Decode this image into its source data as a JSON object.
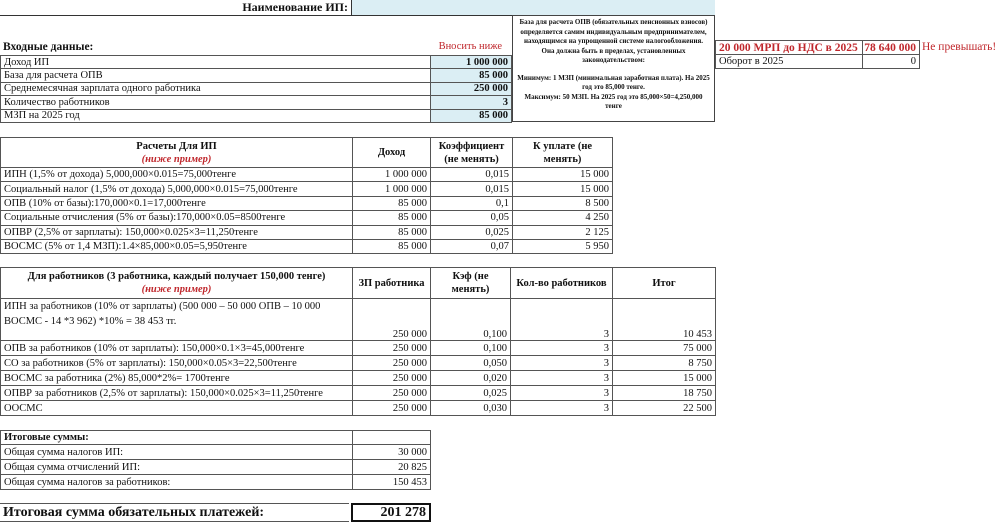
{
  "header": {
    "name_label": "Наименование ИП:",
    "name_value": ""
  },
  "inputs": {
    "title": "Входные данные:",
    "hint": "Вносить ниже",
    "rows": [
      {
        "label": "Доход ИП",
        "value": "1 000 000"
      },
      {
        "label": "База для расчета ОПВ",
        "value": "85 000"
      },
      {
        "label": "Среднемесячная зарплата одного работника",
        "value": "250 000"
      },
      {
        "label": "Количество работников",
        "value": "3"
      },
      {
        "label": "МЗП на 2025 год",
        "value": "85 000"
      }
    ]
  },
  "info": {
    "p1": "База для расчета ОПВ (обязательных пенсионных взносов) определяется самим индивидуальным предпринимателем, находящимся на упрощенной системе налогообложения. Она должна быть в пределах, установленных законодательством:",
    "p2": "Минимум: 1 МЗП (минимальная заработная плата). На 2025 год это 85,000 тенге.",
    "p3": "Максимум: 50 МЗП. На 2025 год это 85,000×50=4,250,000 тенге"
  },
  "limit": {
    "label": "20 000 МРП до НДС в 2025",
    "value": "78 640 000",
    "warning": "Не превышать!",
    "turnover_label": "Оборот в 2025",
    "turnover_value": "0"
  },
  "ip_calc": {
    "title": "Расчеты Для ИП",
    "subtitle": "(ниже пример)",
    "col_income": "Доход",
    "col_coef": "Коэффициент (не менять)",
    "col_pay": "К уплате (не менять)",
    "rows": [
      {
        "label": "ИПН (1,5% от дохода) 5,000,000×0.015=75,000тенге",
        "income": "1 000 000",
        "coef": "0,015",
        "pay": "15 000"
      },
      {
        "label": "Социальный налог (1,5% от дохода) 5,000,000×0.015=75,000тенге",
        "income": "1 000 000",
        "coef": "0,015",
        "pay": "15 000"
      },
      {
        "label": "ОПВ (10% от базы):170,000×0.1=17,000тенге",
        "income": "85 000",
        "coef": "0,1",
        "pay": "8 500"
      },
      {
        "label": "Социальные отчисления (5% от базы):170,000×0.05=8500тенге",
        "income": "85 000",
        "coef": "0,05",
        "pay": "4 250"
      },
      {
        "label": "ОПВР  (2,5% от зарплаты): 150,000×0.025×3=11,250тенге",
        "income": "85 000",
        "coef": "0,025",
        "pay": "2 125"
      },
      {
        "label": "ВОСМС (5% от 1,4 МЗП):1.4×85,000×0.05=5,950тенге",
        "income": "85 000",
        "coef": "0,07",
        "pay": "5 950"
      }
    ]
  },
  "emp_calc": {
    "title": "Для работников (3 работника, каждый получает 150,000 тенге)",
    "subtitle": "(ниже пример)",
    "col_salary": "ЗП работника",
    "col_coef": "Кэф (не менять)",
    "col_count": "Кол-во работников",
    "col_total": "Итог",
    "rows": [
      {
        "label": "ИПН за работников (10% от зарплаты) (500 000 – 50 000 ОПВ – 10 000 ВОСМС - 14 *3 962) *10% = 38 453 тг.",
        "salary": "250 000",
        "coef": "0,100",
        "count": "3",
        "total": "10 453"
      },
      {
        "label": "ОПВ за работников (10% от зарплаты): 150,000×0.1×3=45,000тенге",
        "salary": "250 000",
        "coef": "0,100",
        "count": "3",
        "total": "75 000"
      },
      {
        "label": "СО за работников (5% от зарплаты): 150,000×0.05×3=22,500тенге",
        "salary": "250 000",
        "coef": "0,050",
        "count": "3",
        "total": "8 750"
      },
      {
        "label": "ВОСМС за работника (2%) 85,000*2%= 1700тенге",
        "salary": "250 000",
        "coef": "0,020",
        "count": "3",
        "total": "15 000"
      },
      {
        "label": "ОПВР за работников (2,5% от зарплаты): 150,000×0.025×3=11,250тенге",
        "salary": "250 000",
        "coef": "0,025",
        "count": "3",
        "total": "18 750"
      },
      {
        "label": "ООСМС",
        "salary": "250 000",
        "coef": "0,030",
        "count": "3",
        "total": "22 500"
      }
    ]
  },
  "totals": {
    "title": "Итоговые суммы:",
    "rows": [
      {
        "label": "Общая сумма налогов ИП:",
        "value": "30 000"
      },
      {
        "label": "Общая сумма отчислений ИП:",
        "value": "20 825"
      },
      {
        "label": "Общая сумма налогов за работников:",
        "value": "150 453"
      }
    ]
  },
  "grand": {
    "label": "Итоговая сумма обязательных платежей:",
    "value": "201 278"
  }
}
